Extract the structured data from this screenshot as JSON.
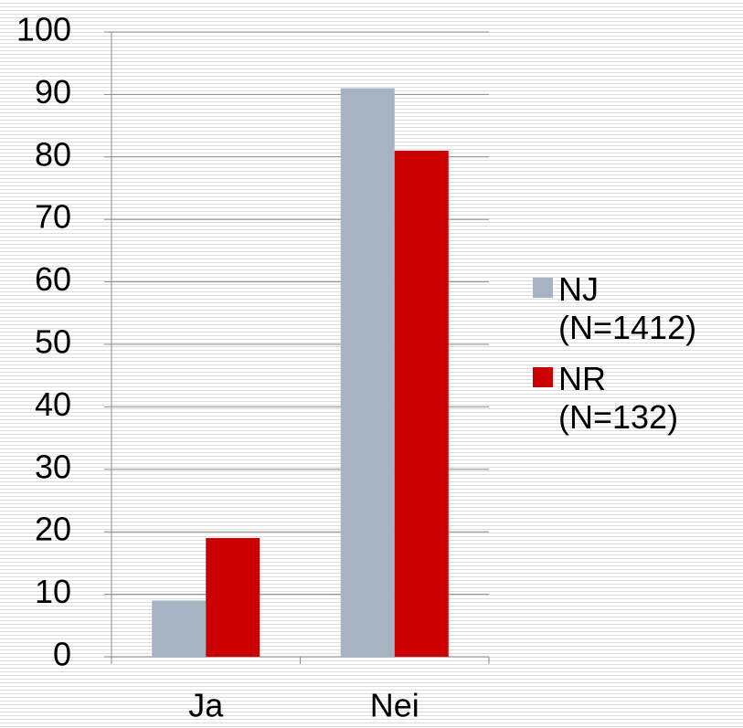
{
  "chart_data": {
    "type": "bar",
    "categories": [
      "Ja",
      "Nei"
    ],
    "series": [
      {
        "name": "NJ (N=1412)",
        "color": "#a5b3c3",
        "values": [
          9,
          91
        ]
      },
      {
        "name": "NR (N=132)",
        "color": "#cc0000",
        "values": [
          19,
          81
        ]
      }
    ],
    "ylim": [
      0,
      100
    ],
    "yticks": [
      0,
      10,
      20,
      30,
      40,
      50,
      60,
      70,
      80,
      90,
      100
    ],
    "grid": true,
    "legend": "right"
  }
}
